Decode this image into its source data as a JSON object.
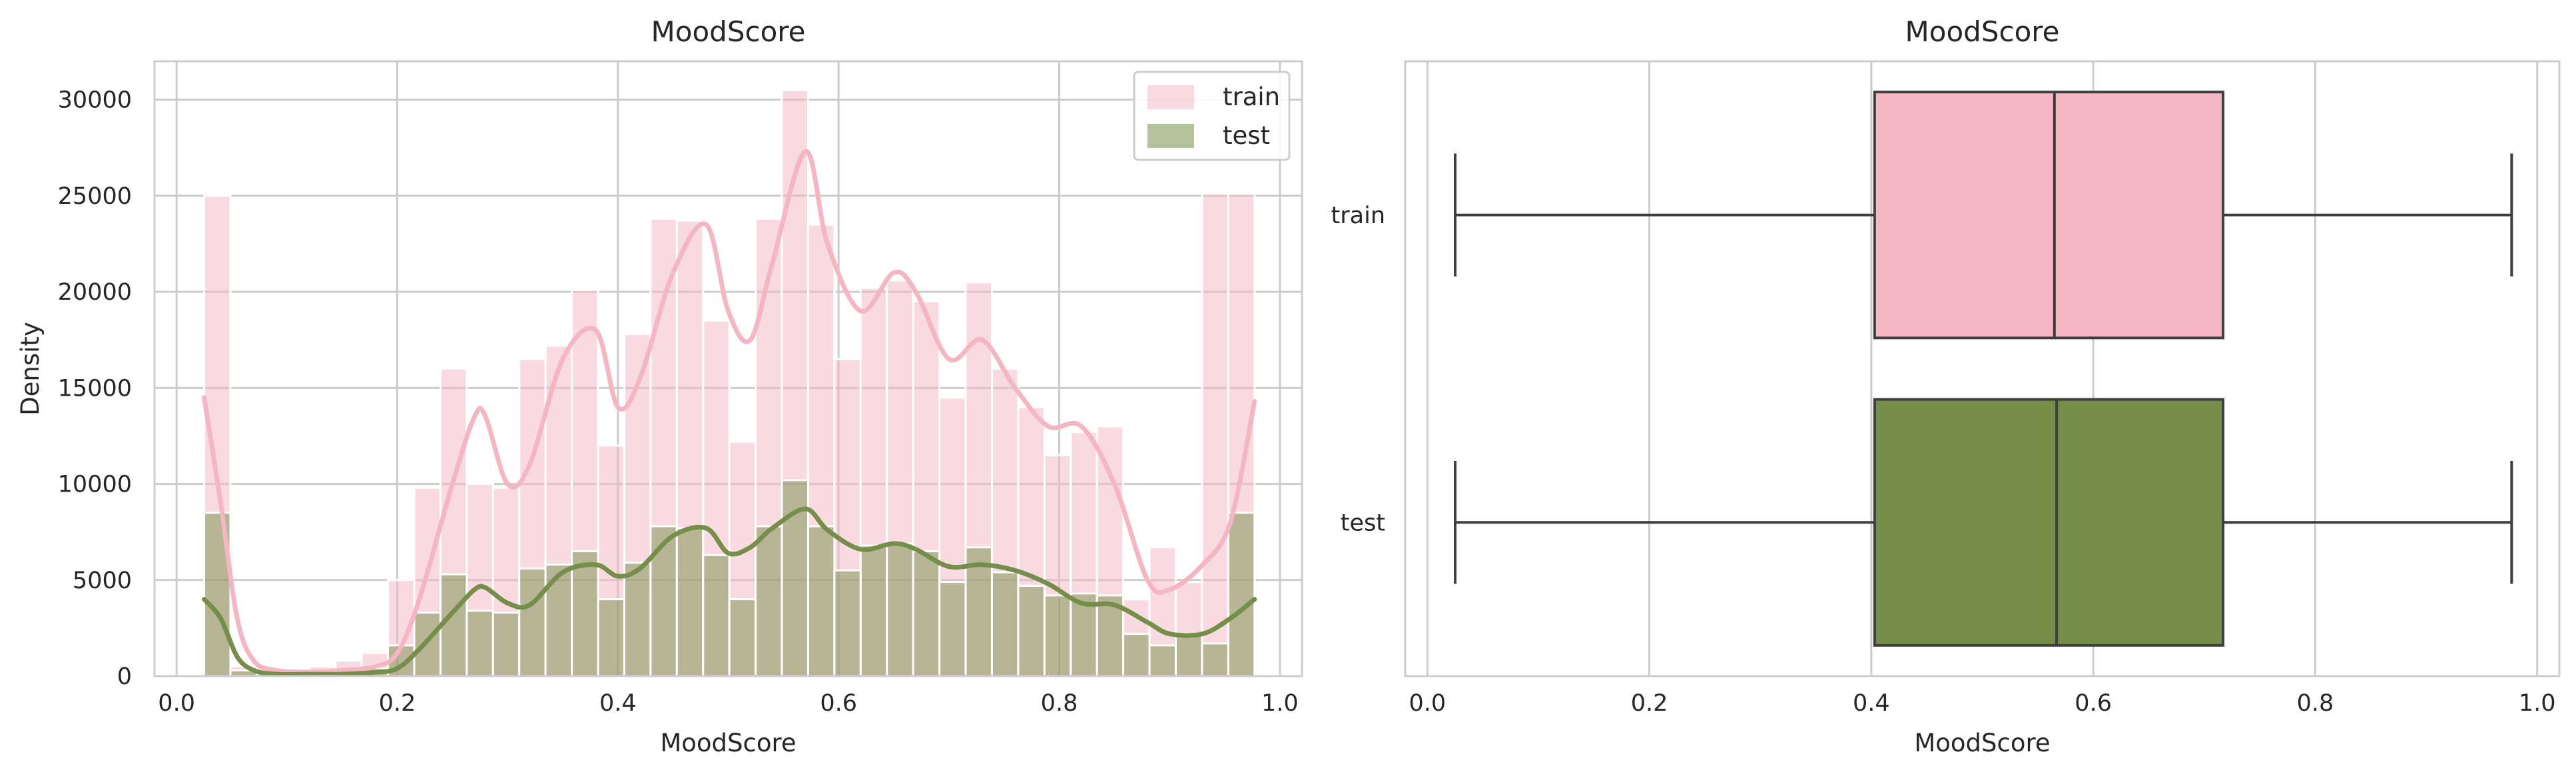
{
  "colors": {
    "train": "#f4b6c2",
    "test": "#758f4b",
    "grid": "#cccccc",
    "frame": "#cccccc",
    "box_line": "#3f3f3f"
  },
  "chart_data": [
    {
      "type": "histogram",
      "title": "MoodScore",
      "xlabel": "MoodScore",
      "ylabel": "Density",
      "xlim": [
        -0.02,
        1.02
      ],
      "ylim": [
        0,
        32000
      ],
      "xticks": [
        "0.0",
        "0.2",
        "0.4",
        "0.6",
        "0.8",
        "1.0"
      ],
      "xtick_values": [
        0.0,
        0.2,
        0.4,
        0.6,
        0.8,
        1.0
      ],
      "yticks": [
        "0",
        "5000",
        "10000",
        "15000",
        "20000",
        "25000",
        "30000"
      ],
      "ytick_values": [
        0,
        5000,
        10000,
        15000,
        20000,
        25000,
        30000
      ],
      "grid": true,
      "legend": {
        "placement": "top-right",
        "entries": [
          "train",
          "test"
        ]
      },
      "bin_edges": [
        0.025,
        0.0488,
        0.0726,
        0.0964,
        0.1202,
        0.144,
        0.1678,
        0.1916,
        0.2154,
        0.2392,
        0.263,
        0.2868,
        0.3106,
        0.3344,
        0.3582,
        0.382,
        0.4058,
        0.4296,
        0.4534,
        0.4772,
        0.501,
        0.5248,
        0.5486,
        0.5724,
        0.5962,
        0.62,
        0.6438,
        0.6676,
        0.6914,
        0.7152,
        0.739,
        0.7628,
        0.7866,
        0.8104,
        0.8342,
        0.858,
        0.8818,
        0.9056,
        0.9294,
        0.9532,
        0.977
      ],
      "series": [
        {
          "name": "train",
          "bars": [
            25000,
            500,
            300,
            400,
            500,
            800,
            1200,
            5000,
            9800,
            16000,
            10000,
            9800,
            16500,
            17200,
            20100,
            12000,
            17800,
            23800,
            23700,
            18500,
            12200,
            23800,
            30500,
            23500,
            16500,
            20200,
            20600,
            19500,
            14500,
            20500,
            16000,
            14000,
            11500,
            12700,
            13000,
            4000,
            6700,
            4900,
            25100,
            25100
          ],
          "kde_x": [
            0.025,
            0.04,
            0.055,
            0.07,
            0.09,
            0.12,
            0.15,
            0.18,
            0.2,
            0.22,
            0.25,
            0.27,
            0.28,
            0.3,
            0.32,
            0.35,
            0.38,
            0.4,
            0.42,
            0.45,
            0.48,
            0.5,
            0.52,
            0.54,
            0.57,
            0.59,
            0.62,
            0.65,
            0.67,
            0.7,
            0.73,
            0.76,
            0.79,
            0.82,
            0.85,
            0.88,
            0.9,
            0.93,
            0.955,
            0.977
          ],
          "kde_y": [
            14500,
            9000,
            3000,
            800,
            300,
            200,
            300,
            500,
            1200,
            4000,
            10000,
            13500,
            13500,
            10000,
            11000,
            16500,
            18000,
            14000,
            15500,
            21000,
            23500,
            19000,
            17500,
            21500,
            27300,
            22500,
            19000,
            21000,
            20000,
            16500,
            17500,
            15000,
            13000,
            13000,
            10000,
            5000,
            4500,
            5800,
            8000,
            14300
          ]
        },
        {
          "name": "test",
          "bars": [
            8500,
            300,
            100,
            100,
            100,
            200,
            400,
            1600,
            3300,
            5300,
            3400,
            3300,
            5600,
            5800,
            6500,
            4000,
            5900,
            7800,
            7700,
            6300,
            4000,
            7800,
            10200,
            7800,
            5500,
            6800,
            6900,
            6500,
            4900,
            6700,
            5400,
            4700,
            4200,
            4300,
            4200,
            2200,
            1600,
            2200,
            1700,
            8500
          ],
          "kde_x": [
            0.025,
            0.04,
            0.055,
            0.07,
            0.09,
            0.12,
            0.15,
            0.18,
            0.2,
            0.22,
            0.25,
            0.27,
            0.28,
            0.3,
            0.32,
            0.35,
            0.38,
            0.4,
            0.42,
            0.45,
            0.48,
            0.5,
            0.52,
            0.54,
            0.57,
            0.59,
            0.62,
            0.65,
            0.67,
            0.7,
            0.73,
            0.76,
            0.79,
            0.82,
            0.85,
            0.88,
            0.9,
            0.93,
            0.955,
            0.977
          ],
          "kde_y": [
            4000,
            3000,
            1000,
            300,
            100,
            100,
            100,
            200,
            400,
            1400,
            3300,
            4500,
            4600,
            3800,
            3700,
            5400,
            5800,
            5200,
            5600,
            7300,
            7700,
            6400,
            6700,
            7700,
            8700,
            7600,
            6600,
            6900,
            6600,
            5700,
            5800,
            5500,
            4800,
            3800,
            3700,
            2800,
            2200,
            2200,
            3000,
            4000
          ]
        }
      ]
    },
    {
      "type": "box",
      "title": "MoodScore",
      "xlabel": "MoodScore",
      "ylabel": "",
      "xlim": [
        -0.02,
        1.02
      ],
      "xticks": [
        "0.0",
        "0.2",
        "0.4",
        "0.6",
        "0.8",
        "1.0"
      ],
      "xtick_values": [
        0.0,
        0.2,
        0.4,
        0.6,
        0.8,
        1.0
      ],
      "categories": [
        "train",
        "test"
      ],
      "grid": true,
      "series": [
        {
          "name": "train",
          "whisker_low": 0.025,
          "q1": 0.403,
          "median": 0.565,
          "q3": 0.717,
          "whisker_high": 0.977
        },
        {
          "name": "test",
          "whisker_low": 0.025,
          "q1": 0.403,
          "median": 0.567,
          "q3": 0.717,
          "whisker_high": 0.977
        }
      ]
    }
  ]
}
